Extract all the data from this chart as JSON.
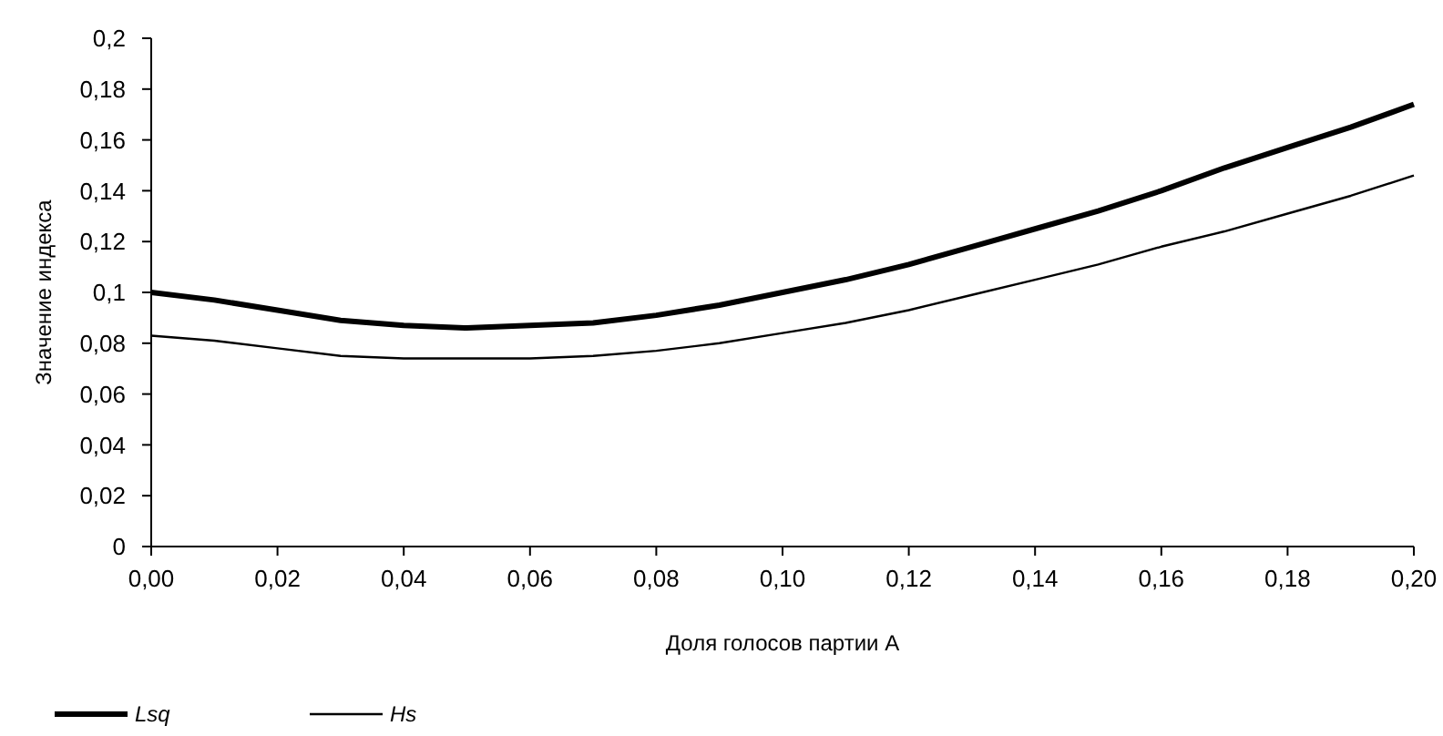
{
  "chart_data": {
    "type": "line",
    "xlabel": "Доля голосов партии А",
    "ylabel": "Значение индекса",
    "x": [
      0,
      0.01,
      0.02,
      0.03,
      0.04,
      0.05,
      0.06,
      0.07,
      0.08,
      0.09,
      0.1,
      0.11,
      0.12,
      0.13,
      0.14,
      0.15,
      0.16,
      0.17,
      0.18,
      0.19,
      0.2
    ],
    "series": [
      {
        "name": "Lsq",
        "color": "#000000",
        "values": [
          0.1,
          0.097,
          0.093,
          0.089,
          0.087,
          0.086,
          0.087,
          0.088,
          0.091,
          0.095,
          0.1,
          0.105,
          0.111,
          0.118,
          0.125,
          0.132,
          0.14,
          0.149,
          0.157,
          0.165,
          0.174
        ]
      },
      {
        "name": "Hs",
        "color": "#000000",
        "values": [
          0.083,
          0.081,
          0.078,
          0.075,
          0.074,
          0.074,
          0.074,
          0.075,
          0.077,
          0.08,
          0.084,
          0.088,
          0.093,
          0.099,
          0.105,
          0.111,
          0.118,
          0.124,
          0.131,
          0.138,
          0.146
        ]
      }
    ],
    "xlim": [
      0,
      0.2
    ],
    "xticks": [
      {
        "value": 0,
        "label": "0,00"
      },
      {
        "value": 0.02,
        "label": "0,02"
      },
      {
        "value": 0.04,
        "label": "0,04"
      },
      {
        "value": 0.06,
        "label": "0,06"
      },
      {
        "value": 0.08,
        "label": "0,08"
      },
      {
        "value": 0.1,
        "label": "0,10"
      },
      {
        "value": 0.12,
        "label": "0,12"
      },
      {
        "value": 0.14,
        "label": "0,14"
      },
      {
        "value": 0.16,
        "label": "0,16"
      },
      {
        "value": 0.18,
        "label": "0,18"
      },
      {
        "value": 0.2,
        "label": "0,20"
      }
    ],
    "ylim": [
      0,
      0.2
    ],
    "yticks": [
      0,
      {
        "value": 0.02,
        "label": "0,02"
      },
      {
        "value": 0.04,
        "label": "0,04"
      },
      {
        "value": 0.06,
        "label": "0,06"
      },
      {
        "value": 0.08,
        "label": "0,08"
      },
      {
        "value": 0.1,
        "label": "0,1"
      },
      {
        "value": 0.12,
        "label": "0,12"
      },
      {
        "value": 0.14,
        "label": "0,14"
      },
      {
        "value": 0.16,
        "label": "0,16"
      },
      {
        "value": 0.18,
        "label": "0,18"
      },
      {
        "value": 0.2,
        "label": "0,2"
      }
    ],
    "grid": false,
    "legend": "bottom",
    "marker": "none",
    "line_style": "solid"
  }
}
